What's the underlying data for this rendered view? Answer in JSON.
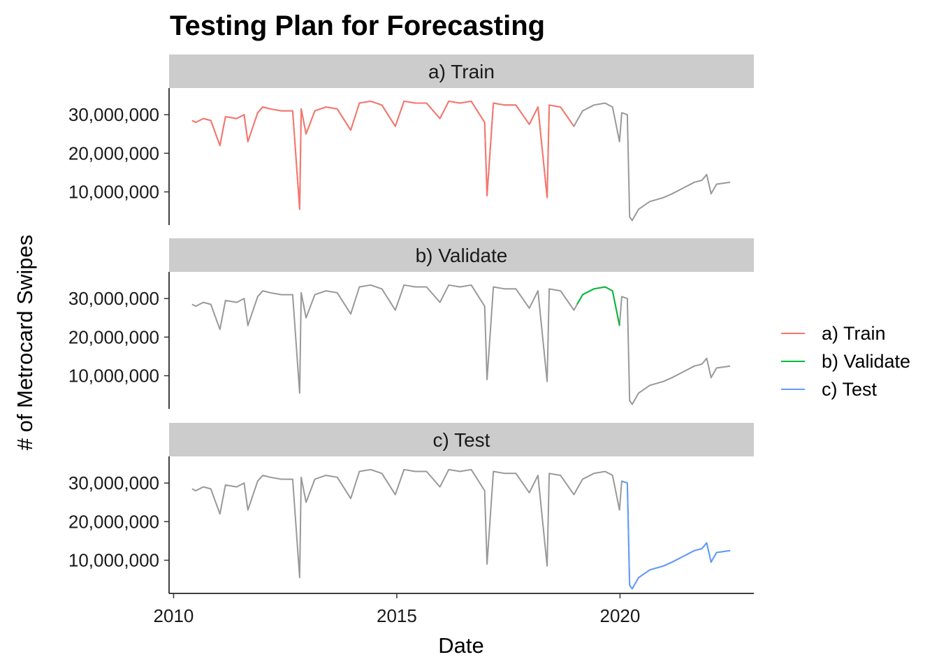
{
  "chart_data": {
    "type": "line",
    "title": "Testing Plan for Forecasting",
    "xlabel": "Date",
    "ylabel": "# of Metrocard Swipes",
    "x_ticks": [
      "2010",
      "2015",
      "2020"
    ],
    "y_ticks": [
      "10,000,000",
      "20,000,000",
      "30,000,000"
    ],
    "xlim": [
      "2009-11-25",
      "2022-12-31"
    ],
    "ylim": [
      1400000,
      36900000
    ],
    "legend_position": "right",
    "grid": false,
    "facets": [
      {
        "label": "a) Train",
        "highlight": "a) Train",
        "period": [
          "2010-06-01",
          "2018-12-31"
        ]
      },
      {
        "label": "b) Validate",
        "highlight": "b) Validate",
        "period": [
          "2019-01-01",
          "2019-12-31"
        ]
      },
      {
        "label": "c) Test",
        "highlight": "c) Test",
        "period": [
          "2020-01-01",
          "2022-06-30"
        ]
      }
    ],
    "series": [
      {
        "name": "a) Train",
        "color": "#F8766D"
      },
      {
        "name": "b) Validate",
        "color": "#00BA38"
      },
      {
        "name": "c) Test",
        "color": "#619CFF"
      }
    ],
    "background_series_color": "#999999",
    "x": [
      "2010-06-01",
      "2010-07-01",
      "2010-09-01",
      "2010-11-01",
      "2011-01-15",
      "2011-03-01",
      "2011-06-01",
      "2011-08-01",
      "2011-09-01",
      "2011-11-20",
      "2012-01-01",
      "2012-03-01",
      "2012-06-01",
      "2012-09-01",
      "2012-10-28",
      "2012-11-10",
      "2012-12-20",
      "2013-03-01",
      "2013-06-01",
      "2013-09-01",
      "2013-12-20",
      "2014-03-01",
      "2014-06-01",
      "2014-09-01",
      "2014-12-20",
      "2015-03-01",
      "2015-06-01",
      "2015-09-01",
      "2015-12-20",
      "2016-03-01",
      "2016-06-01",
      "2016-09-01",
      "2016-12-20",
      "2017-01-08",
      "2017-03-01",
      "2017-06-01",
      "2017-09-01",
      "2017-12-20",
      "2018-03-01",
      "2018-05-15",
      "2018-06-01",
      "2018-09-01",
      "2018-12-20",
      "2019-01-15",
      "2019-03-01",
      "2019-06-01",
      "2019-09-01",
      "2019-11-01",
      "2019-12-28",
      "2020-01-15",
      "2020-03-01",
      "2020-03-20",
      "2020-04-10",
      "2020-06-01",
      "2020-09-01",
      "2020-12-20",
      "2021-03-01",
      "2021-06-01",
      "2021-09-01",
      "2021-11-01",
      "2021-12-10",
      "2022-01-15",
      "2022-03-01",
      "2022-06-20"
    ],
    "values": [
      28500000,
      28000000,
      29000000,
      28500000,
      22000000,
      29500000,
      29000000,
      30000000,
      23000000,
      30500000,
      32000000,
      31500000,
      31000000,
      31000000,
      5500000,
      31500000,
      25000000,
      31000000,
      32000000,
      31500000,
      26000000,
      33000000,
      33500000,
      32500000,
      27000000,
      33500000,
      33000000,
      33000000,
      29000000,
      33500000,
      33000000,
      33500000,
      28000000,
      9000000,
      33000000,
      32500000,
      32500000,
      27500000,
      32000000,
      8500000,
      32500000,
      32000000,
      27000000,
      28500000,
      31000000,
      32500000,
      33000000,
      32000000,
      23000000,
      30500000,
      30000000,
      3500000,
      2600000,
      5500000,
      7500000,
      8500000,
      9500000,
      11000000,
      12500000,
      13000000,
      14500000,
      9500000,
      12000000,
      12500000
    ]
  }
}
